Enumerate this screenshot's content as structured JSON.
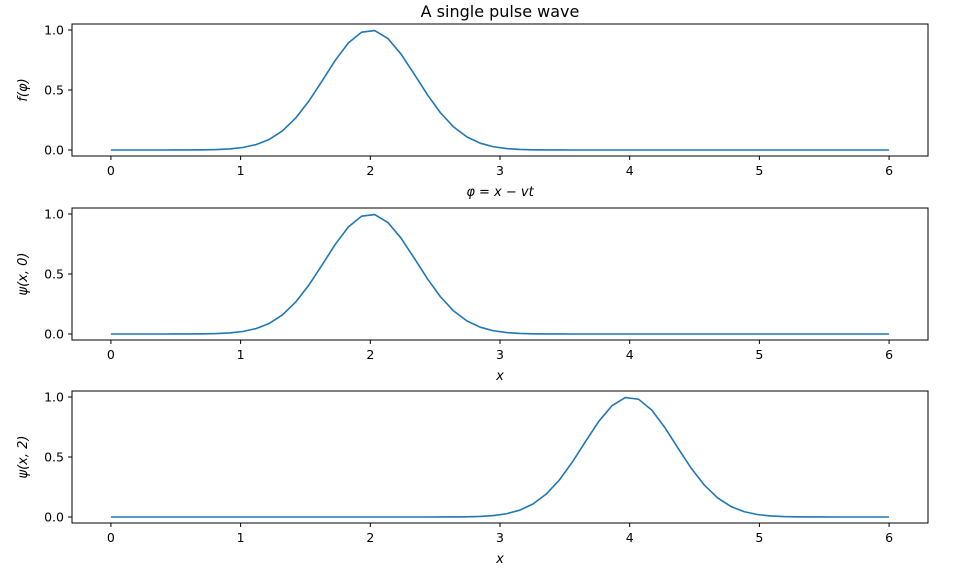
{
  "chart_data": [
    {
      "type": "line",
      "title": "A single pulse wave",
      "xlabel": "φ = x − vt",
      "ylabel": "f(φ)",
      "xlim": [
        -0.3,
        6.3
      ],
      "ylim": [
        -0.05,
        1.05
      ],
      "xticks": [
        "0",
        "1",
        "2",
        "3",
        "4",
        "5",
        "6"
      ],
      "yticks": [
        "0.0",
        "0.5",
        "1.0"
      ],
      "grid": false,
      "color": "#1f77b4",
      "series": [
        {
          "center": 2,
          "width": 0.5,
          "x_min": 0,
          "x_max": 6,
          "n_points": 60
        }
      ]
    },
    {
      "type": "line",
      "title": "",
      "xlabel": "x",
      "ylabel": "ψ(x, 0)",
      "xlim": [
        -0.3,
        6.3
      ],
      "ylim": [
        -0.05,
        1.05
      ],
      "xticks": [
        "0",
        "1",
        "2",
        "3",
        "4",
        "5",
        "6"
      ],
      "yticks": [
        "0.0",
        "0.5",
        "1.0"
      ],
      "grid": false,
      "color": "#1f77b4",
      "series": [
        {
          "center": 2,
          "width": 0.5,
          "x_min": 0,
          "x_max": 6,
          "n_points": 60
        }
      ]
    },
    {
      "type": "line",
      "title": "",
      "xlabel": "x",
      "ylabel": "ψ(x, 2)",
      "xlim": [
        -0.3,
        6.3
      ],
      "ylim": [
        -0.05,
        1.05
      ],
      "xticks": [
        "0",
        "1",
        "2",
        "3",
        "4",
        "5",
        "6"
      ],
      "yticks": [
        "0.0",
        "0.5",
        "1.0"
      ],
      "grid": false,
      "color": "#1f77b4",
      "series": [
        {
          "center": 4,
          "width": 0.5,
          "x_min": 0,
          "x_max": 6,
          "n_points": 60
        }
      ]
    }
  ]
}
